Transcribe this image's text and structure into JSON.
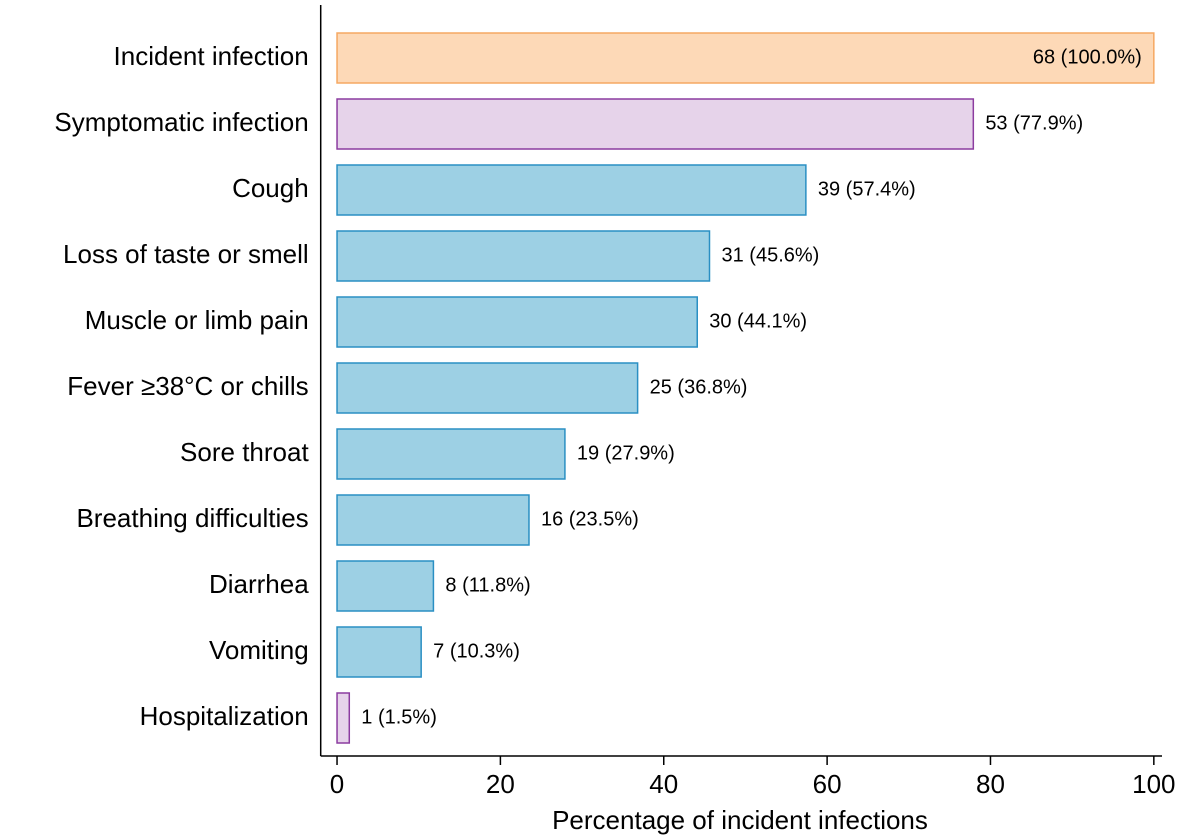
{
  "chart_data": {
    "type": "barh",
    "xlabel": "Percentage of incident infections",
    "categories": [
      "Incident infection",
      "Symptomatic infection",
      "Cough",
      "Loss of taste or smell",
      "Muscle or limb pain",
      "Fever ≥38°C or chills",
      "Sore throat",
      "Breathing difficulties",
      "Diarrhea",
      "Vomiting",
      "Hospitalization"
    ],
    "values": [
      100.0,
      77.9,
      57.4,
      45.6,
      44.1,
      36.8,
      27.9,
      23.5,
      11.8,
      10.3,
      1.5
    ],
    "value_labels": [
      "68 (100.0%)",
      "53 (77.9%)",
      "39 (57.4%)",
      "31 (45.6%)",
      "30 (44.1%)",
      "25 (36.8%)",
      "19 (27.9%)",
      "16 (23.5%)",
      "8 (11.8%)",
      "7 (10.3%)",
      "1 (1.5%)"
    ],
    "colors": [
      "#fdd9b7",
      "#e6d3ea",
      "#9dd0e4",
      "#9dd0e4",
      "#9dd0e4",
      "#9dd0e4",
      "#9dd0e4",
      "#9dd0e4",
      "#9dd0e4",
      "#9dd0e4",
      "#e6d3ea"
    ],
    "edge_colors": [
      "#f5a862",
      "#8c3ca0",
      "#2a8fc3",
      "#2a8fc3",
      "#2a8fc3",
      "#2a8fc3",
      "#2a8fc3",
      "#2a8fc3",
      "#2a8fc3",
      "#2a8fc3",
      "#8c3ca0"
    ],
    "xlim": [
      -2,
      101
    ],
    "xticks": [
      0,
      20,
      40,
      60,
      80,
      100
    ]
  }
}
